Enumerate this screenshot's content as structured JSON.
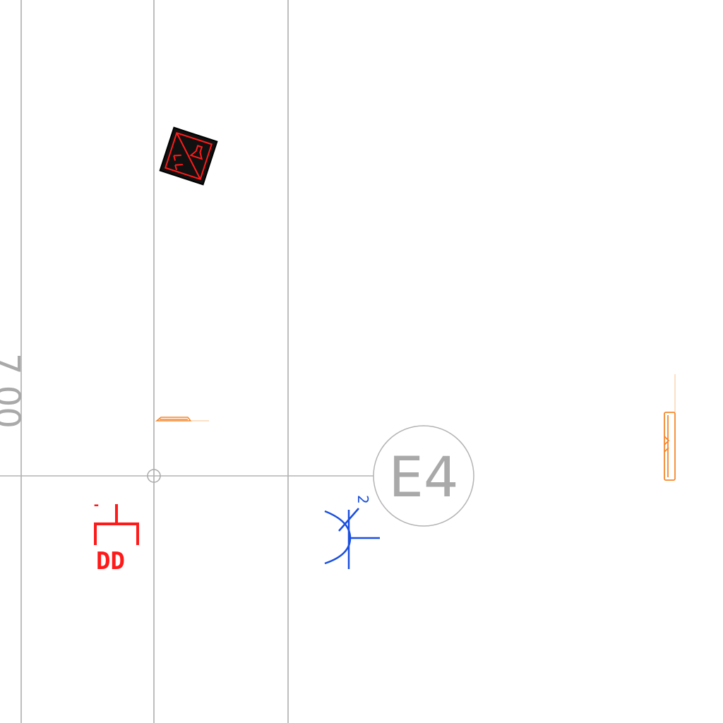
{
  "grid_bubble": {
    "label": "E4"
  },
  "dimension_fragment": {
    "text": "7.00"
  },
  "symbols": {
    "device_tag": "DD",
    "device_tick": "-",
    "switch_number": "2"
  },
  "colors": {
    "grid_lines": "#a9a9a9",
    "red_symbols": "#ff1a1a",
    "blue_symbols": "#1a4fe0",
    "orange_fixtures": "#f5862a",
    "background": "#ffffff"
  }
}
